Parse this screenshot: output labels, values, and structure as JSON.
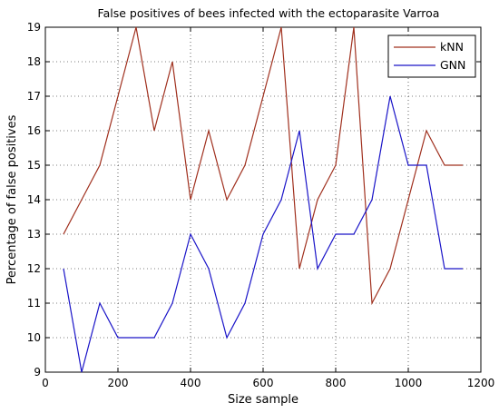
{
  "chart_data": {
    "type": "line",
    "title": "False positives of bees infected with the ectoparasite Varroa",
    "xlabel": "Size sample",
    "ylabel": "Percentage of false positives",
    "xlim": [
      0,
      1200
    ],
    "ylim": [
      9,
      19
    ],
    "xticks": [
      "0",
      "200",
      "400",
      "600",
      "800",
      "1000",
      "1200"
    ],
    "yticks": [
      "9",
      "10",
      "11",
      "12",
      "13",
      "14",
      "15",
      "16",
      "17",
      "18",
      "19"
    ],
    "grid": true,
    "legend_position": "top-right",
    "x": [
      50,
      100,
      150,
      200,
      250,
      300,
      350,
      400,
      450,
      500,
      550,
      600,
      650,
      700,
      750,
      800,
      850,
      900,
      950,
      1000,
      1050,
      1100,
      1150
    ],
    "series": [
      {
        "name": "kNN",
        "color": "#a0301e",
        "values": [
          13,
          14,
          15,
          17,
          19,
          16,
          18,
          14,
          16,
          14,
          15,
          17,
          19,
          12,
          14,
          15,
          19,
          11,
          12,
          14,
          16,
          15,
          15
        ]
      },
      {
        "name": "GNN",
        "color": "#1a14c8",
        "values": [
          12,
          9,
          11,
          10,
          10,
          10,
          11,
          13,
          12,
          10,
          11,
          13,
          14,
          16,
          12,
          13,
          13,
          14,
          17,
          15,
          15,
          12,
          12
        ]
      }
    ]
  }
}
